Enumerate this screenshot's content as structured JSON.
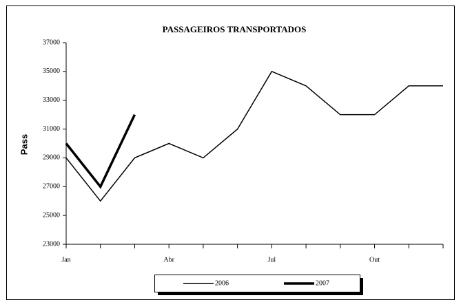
{
  "chart_data": {
    "type": "line",
    "title": "PASSAGEIROS TRANSPORTADOS",
    "y_label": "Pass",
    "categories": [
      "Jan",
      null,
      null,
      "Abr",
      null,
      null,
      "Jul",
      null,
      null,
      "Out",
      null,
      null
    ],
    "series": [
      {
        "name": "2006",
        "color": "#000000",
        "values": [
          29000,
          26000,
          29000,
          30000,
          29000,
          31000,
          35000,
          34000,
          32000,
          32000,
          34000,
          34000
        ]
      },
      {
        "name": "2007",
        "color": "#000000",
        "values": [
          30000,
          27000,
          32000,
          null,
          null,
          null,
          null,
          null,
          null,
          null,
          null,
          null
        ]
      }
    ],
    "ylim": [
      23000,
      37000
    ],
    "yticks": [
      23000,
      25000,
      27000,
      29000,
      31000,
      33000,
      35000,
      37000
    ]
  }
}
